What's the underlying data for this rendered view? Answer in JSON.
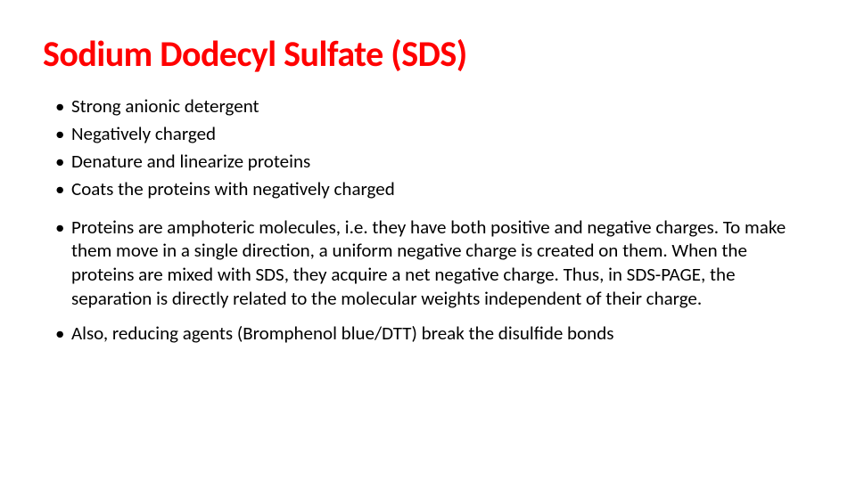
{
  "title": {
    "text": "Sodium Dodecyl Sulfate (SDS)",
    "color": "#ff0000",
    "fontsize": 40,
    "fontweight": 700
  },
  "body": {
    "color": "#000000",
    "fontsize": 21,
    "bullets": [
      {
        "text": "Strong anionic detergent"
      },
      {
        "text": "Negatively charged"
      },
      {
        "text": "Denature and linearize proteins"
      },
      {
        "text": "Coats the proteins with negatively charged"
      },
      {
        "text": "Proteins are amphoteric molecules, i.e. they have both positive and negative charges. To make them move in a single direction, a uniform negative charge is created on them. When the proteins are mixed with SDS, they acquire a net negative charge. Thus, in SDS-PAGE, the separation is directly related to the molecular weights independent of their charge.",
        "gap": "top"
      },
      {
        "text": "Also, reducing agents (Bromphenol blue/DTT) break the disulfide bonds",
        "gap": "top-sm"
      }
    ]
  },
  "background_color": "#ffffff",
  "slide_width": 960,
  "slide_height": 540
}
